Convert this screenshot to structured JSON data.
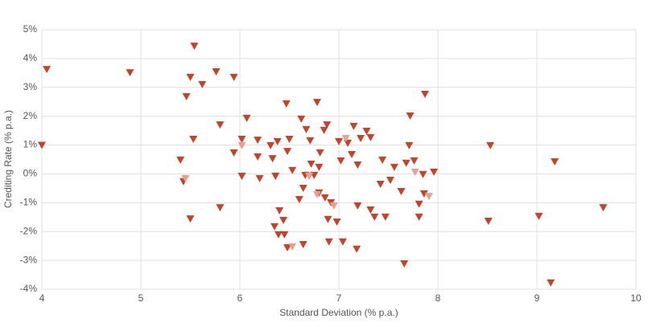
{
  "chart_data": {
    "type": "scatter",
    "xlabel": "Standard Deviation (% p.a.)",
    "ylabel": "Crediting Rate (% p.a.)",
    "xlim": [
      4,
      10
    ],
    "xticks": [
      4,
      5,
      6,
      7,
      8,
      9,
      10
    ],
    "ylim": [
      -4,
      5
    ],
    "yticks": [
      {
        "value": -4,
        "label": "-4%"
      },
      {
        "value": -3,
        "label": "-3%"
      },
      {
        "value": -2,
        "label": "-2%"
      },
      {
        "value": -1,
        "label": "-1%"
      },
      {
        "value": 0,
        "label": "0%"
      },
      {
        "value": 1,
        "label": "1%"
      },
      {
        "value": 2,
        "label": "2%"
      },
      {
        "value": 3,
        "label": "3%"
      },
      {
        "value": 4,
        "label": "4%"
      },
      {
        "value": 5,
        "label": "5%"
      }
    ],
    "grid": true,
    "marker": "triangle-down",
    "series": [
      {
        "color": "#c4432b",
        "x": [
          4.05,
          4.0,
          4.89,
          5.54,
          5.76,
          5.5,
          5.62,
          5.94,
          5.46,
          5.8,
          6.07,
          5.53,
          6.02,
          5.94,
          5.4,
          5.43,
          5.5,
          5.8,
          6.02,
          6.18,
          6.18,
          6.2,
          6.31,
          6.38,
          6.33,
          6.36,
          6.5,
          6.48,
          6.47,
          6.53,
          6.4,
          6.44,
          6.35,
          6.39,
          6.45,
          6.48,
          6.64,
          6.62,
          6.67,
          6.71,
          6.78,
          6.81,
          6.85,
          6.88,
          6.72,
          6.75,
          6.66,
          6.8,
          6.64,
          6.6,
          6.8,
          6.86,
          6.92,
          6.89,
          6.98,
          6.9,
          7.04,
          7.18,
          7.0,
          7.09,
          7.13,
          7.15,
          7.22,
          7.28,
          7.32,
          7.02,
          7.19,
          7.44,
          7.56,
          7.42,
          7.52,
          7.19,
          7.32,
          7.36,
          7.47,
          7.63,
          7.71,
          7.72,
          7.87,
          7.68,
          7.76,
          7.85,
          7.96,
          7.81,
          7.81,
          7.86,
          7.66,
          8.53,
          8.51,
          9.02,
          9.18,
          9.14,
          9.67
        ],
        "values": [
          3.63,
          1.0,
          3.52,
          4.44,
          3.55,
          3.36,
          3.11,
          3.36,
          2.69,
          1.71,
          1.94,
          1.21,
          1.21,
          0.74,
          0.49,
          -0.26,
          -1.55,
          -1.16,
          -0.07,
          1.18,
          0.6,
          -0.15,
          0.99,
          1.13,
          0.54,
          -0.07,
          1.21,
          0.79,
          2.44,
          0.13,
          -1.27,
          -1.6,
          -1.82,
          -2.1,
          -2.1,
          -2.55,
          -2.44,
          1.91,
          1.55,
          1.16,
          2.49,
          0.74,
          1.52,
          1.71,
          0.35,
          -0.04,
          -0.04,
          0.24,
          -0.49,
          -0.88,
          -0.65,
          -0.82,
          -0.99,
          -1.57,
          -1.66,
          -2.35,
          -2.35,
          -2.6,
          1.13,
          1.07,
          0.68,
          1.66,
          1.24,
          1.49,
          1.27,
          0.46,
          0.32,
          0.49,
          0.24,
          -0.35,
          -0.21,
          -1.1,
          -1.24,
          -1.49,
          -1.49,
          -0.6,
          0.99,
          2.02,
          2.77,
          0.38,
          0.46,
          -0.01,
          0.07,
          -1.04,
          -1.49,
          -0.68,
          -3.11,
          0.99,
          -1.63,
          -1.46,
          0.43,
          -3.77,
          -1.16
        ]
      },
      {
        "color": "#eba08f",
        "x": [
          5.45,
          6.02,
          6.53,
          6.7,
          6.78,
          6.95,
          7.07,
          7.77,
          7.91
        ],
        "values": [
          -0.15,
          0.99,
          -2.52,
          -0.07,
          -0.71,
          -1.1,
          1.24,
          0.07,
          -0.77
        ]
      }
    ]
  }
}
